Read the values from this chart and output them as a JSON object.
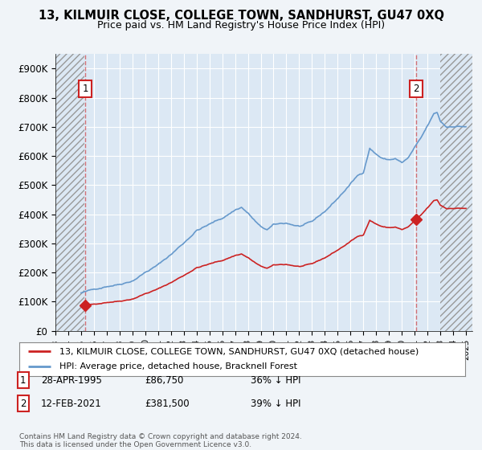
{
  "title": "13, KILMUIR CLOSE, COLLEGE TOWN, SANDHURST, GU47 0XQ",
  "subtitle": "Price paid vs. HM Land Registry's House Price Index (HPI)",
  "ylim": [
    0,
    950000
  ],
  "yticks": [
    0,
    100000,
    200000,
    300000,
    400000,
    500000,
    600000,
    700000,
    800000,
    900000
  ],
  "ytick_labels": [
    "£0",
    "£100K",
    "£200K",
    "£300K",
    "£400K",
    "£500K",
    "£600K",
    "£700K",
    "£800K",
    "£900K"
  ],
  "xlim_start": 1993.0,
  "xlim_end": 2025.5,
  "hatch_left_end": 1995.25,
  "hatch_right_start": 2023.0,
  "sale1_x": 1995.32,
  "sale1_y": 86750,
  "sale2_x": 2021.12,
  "sale2_y": 381500,
  "red_line_color": "#cc2222",
  "blue_line_color": "#6699cc",
  "background_color": "#f0f4f8",
  "plot_bg_color": "#dce8f4",
  "legend_label1": "13, KILMUIR CLOSE, COLLEGE TOWN, SANDHURST, GU47 0XQ (detached house)",
  "legend_label2": "HPI: Average price, detached house, Bracknell Forest",
  "info1_date": "28-APR-1995",
  "info1_price": "£86,750",
  "info1_hpi": "36% ↓ HPI",
  "info2_date": "12-FEB-2021",
  "info2_price": "£381,500",
  "info2_hpi": "39% ↓ HPI",
  "footer": "Contains HM Land Registry data © Crown copyright and database right 2024.\nThis data is licensed under the Open Government Licence v3.0."
}
